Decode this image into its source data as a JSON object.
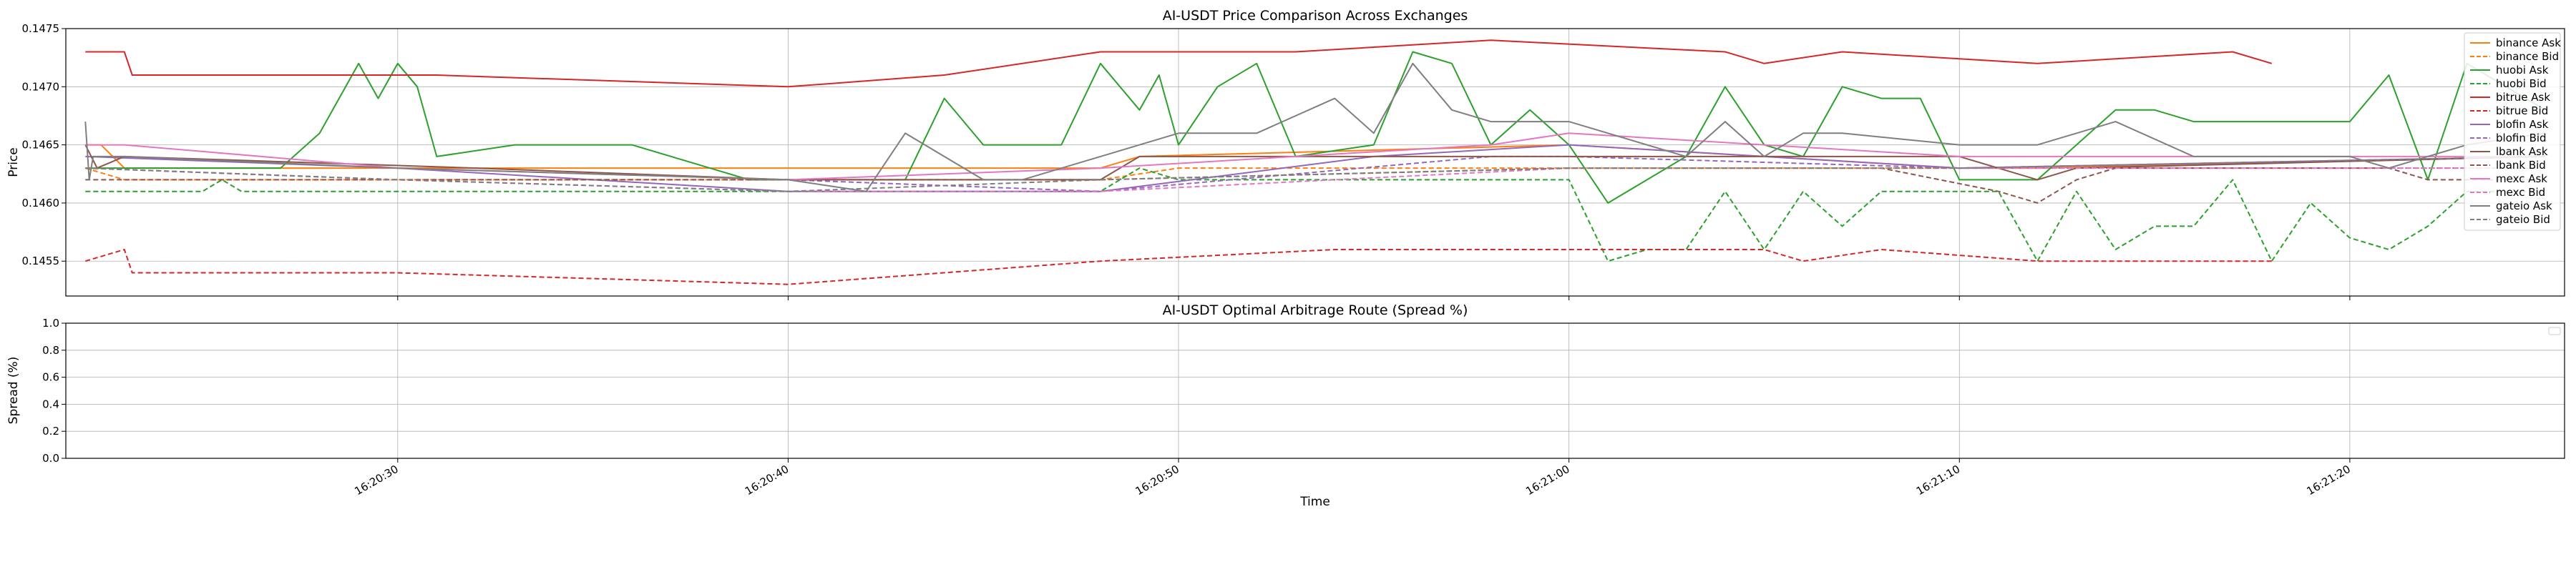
{
  "chart_data": [
    {
      "type": "line",
      "title": "AI-USDT Price Comparison Across Exchanges",
      "xlabel": "",
      "ylabel": "Price",
      "ylim": [
        0.1452,
        0.1475
      ],
      "y_ticks": [
        "0.1455",
        "0.1460",
        "0.1465",
        "0.1470",
        "0.1475"
      ],
      "x_range": [
        "16:20:21.5",
        "16:21:25.5"
      ],
      "x_ticks": [
        "16:20:30",
        "16:20:40",
        "16:20:50",
        "16:21:00",
        "16:21:10",
        "16:21:20"
      ],
      "grid": true,
      "legend_position": "top-right",
      "series": [
        {
          "name": "binance Ask",
          "color": "#ff7f0e",
          "dash": "solid",
          "x": [
            "16:20:22",
            "16:20:22.4",
            "16:20:23",
            "16:20:40",
            "16:20:48",
            "16:20:49",
            "16:21:00",
            "16:21:05",
            "16:21:10",
            "16:21:12",
            "16:21:25"
          ],
          "y": [
            0.1465,
            0.1465,
            0.1463,
            0.1463,
            0.1463,
            0.1464,
            0.1465,
            0.1464,
            0.1463,
            0.1463,
            0.1464
          ]
        },
        {
          "name": "binance Bid",
          "color": "#ff7f0e",
          "dash": "dashed",
          "x": [
            "16:20:22",
            "16:20:23",
            "16:20:40",
            "16:20:48",
            "16:20:50",
            "16:21:00",
            "16:21:05",
            "16:21:10",
            "16:21:25"
          ],
          "y": [
            0.1463,
            0.1462,
            0.1462,
            0.1462,
            0.1463,
            0.1463,
            0.1463,
            0.1463,
            0.1464
          ]
        },
        {
          "name": "huobi Ask",
          "color": "#2ca02c",
          "dash": "solid",
          "x": [
            "16:20:22",
            "16:20:27",
            "16:20:28",
            "16:20:29",
            "16:20:29.5",
            "16:20:30",
            "16:20:30.5",
            "16:20:31",
            "16:20:33",
            "16:20:36",
            "16:20:39",
            "16:20:43",
            "16:20:44",
            "16:20:45",
            "16:20:47",
            "16:20:48",
            "16:20:49",
            "16:20:49.5",
            "16:20:50",
            "16:20:51",
            "16:20:52",
            "16:20:53",
            "16:20:55",
            "16:20:56",
            "16:20:57",
            "16:20:58",
            "16:20:59",
            "16:21:00",
            "16:21:01",
            "16:21:03",
            "16:21:04",
            "16:21:05",
            "16:21:06",
            "16:21:07",
            "16:21:08",
            "16:21:09",
            "16:21:10",
            "16:21:12",
            "16:21:14",
            "16:21:15",
            "16:21:16",
            "16:21:20",
            "16:21:21",
            "16:21:22",
            "16:21:23",
            "16:21:24",
            "16:21:25"
          ],
          "y": [
            0.1463,
            0.1463,
            0.1466,
            0.1472,
            0.1469,
            0.1472,
            0.147,
            0.1464,
            0.1465,
            0.1465,
            0.1462,
            0.1462,
            0.1469,
            0.1465,
            0.1465,
            0.1472,
            0.1468,
            0.1471,
            0.1465,
            0.147,
            0.1472,
            0.1464,
            0.1465,
            0.1473,
            0.1472,
            0.1465,
            0.1468,
            0.1465,
            0.146,
            0.1464,
            0.147,
            0.1465,
            0.1464,
            0.147,
            0.1469,
            0.1469,
            0.1462,
            0.1462,
            0.1468,
            0.1468,
            0.1467,
            0.1467,
            0.1471,
            0.1462,
            0.1472,
            0.147,
            0.1468
          ]
        },
        {
          "name": "huobi Bid",
          "color": "#2ca02c",
          "dash": "dashed",
          "x": [
            "16:20:22",
            "16:20:25",
            "16:20:25.5",
            "16:20:26",
            "16:20:40",
            "16:20:45",
            "16:20:48",
            "16:20:49",
            "16:20:50",
            "16:20:51",
            "16:21:00",
            "16:21:01",
            "16:21:02",
            "16:21:03",
            "16:21:04",
            "16:21:05",
            "16:21:06",
            "16:21:07",
            "16:21:08",
            "16:21:09",
            "16:21:10",
            "16:21:11",
            "16:21:12",
            "16:21:13",
            "16:21:14",
            "16:21:15",
            "16:21:16",
            "16:21:17",
            "16:21:18",
            "16:21:19",
            "16:21:20",
            "16:21:21",
            "16:21:22",
            "16:21:23",
            "16:21:25"
          ],
          "y": [
            0.1461,
            0.1461,
            0.1462,
            0.1461,
            0.1461,
            0.1461,
            0.1461,
            0.1463,
            0.1462,
            0.1462,
            0.1462,
            0.1455,
            0.1456,
            0.1456,
            0.1461,
            0.1456,
            0.1461,
            0.1458,
            0.1461,
            0.1461,
            0.1461,
            0.1461,
            0.1455,
            0.1461,
            0.1456,
            0.1458,
            0.1458,
            0.1462,
            0.1455,
            0.146,
            0.1457,
            0.1456,
            0.1458,
            0.1461,
            0.1461
          ]
        },
        {
          "name": "bitrue Ask",
          "color": "#d62728",
          "dash": "solid",
          "x": [
            "16:20:22",
            "16:20:23",
            "16:20:23.2",
            "16:20:31",
            "16:20:40",
            "16:20:44",
            "16:20:48",
            "16:20:53",
            "16:20:58",
            "16:21:04",
            "16:21:05",
            "16:21:07",
            "16:21:12",
            "16:21:17",
            "16:21:18"
          ],
          "y": [
            0.1473,
            0.1473,
            0.1471,
            0.1471,
            0.147,
            0.1471,
            0.1473,
            0.1473,
            0.1474,
            0.1473,
            0.1472,
            0.1473,
            0.1472,
            0.1473,
            0.1472
          ]
        },
        {
          "name": "bitrue Bid",
          "color": "#d62728",
          "dash": "dashed",
          "x": [
            "16:20:22",
            "16:20:23",
            "16:20:23.2",
            "16:20:30",
            "16:20:40",
            "16:20:48",
            "16:20:54",
            "16:21:00",
            "16:21:05",
            "16:21:06",
            "16:21:08",
            "16:21:12",
            "16:21:18"
          ],
          "y": [
            0.1455,
            0.1456,
            0.1454,
            0.1454,
            0.1453,
            0.1455,
            0.1456,
            0.1456,
            0.1456,
            0.1455,
            0.1456,
            0.1455,
            0.1455
          ]
        },
        {
          "name": "blofin Ask",
          "color": "#9467bd",
          "dash": "solid",
          "x": [
            "16:20:22",
            "16:20:30",
            "16:20:40",
            "16:20:48",
            "16:20:55",
            "16:21:00",
            "16:21:10",
            "16:21:25"
          ],
          "y": [
            0.1464,
            0.1463,
            0.1461,
            0.1461,
            0.1464,
            0.1465,
            0.1463,
            0.1464
          ]
        },
        {
          "name": "blofin Bid",
          "color": "#9467bd",
          "dash": "dashed",
          "x": [
            "16:20:22",
            "16:20:30",
            "16:20:40",
            "16:20:48",
            "16:20:58",
            "16:21:00",
            "16:21:10",
            "16:21:25"
          ],
          "y": [
            0.1463,
            0.1462,
            0.1462,
            0.1461,
            0.1464,
            0.1464,
            0.1463,
            0.1463
          ]
        },
        {
          "name": "lbank Ask",
          "color": "#8c564b",
          "dash": "solid",
          "x": [
            "16:20:22",
            "16:20:22.3",
            "16:20:23",
            "16:20:32",
            "16:20:40",
            "16:20:48",
            "16:20:49",
            "16:21:00",
            "16:21:10",
            "16:21:12",
            "16:21:13",
            "16:21:25"
          ],
          "y": [
            0.1465,
            0.1463,
            0.1464,
            0.1463,
            0.1462,
            0.1462,
            0.1464,
            0.1464,
            0.1464,
            0.1462,
            0.1463,
            0.1464
          ]
        },
        {
          "name": "lbank Bid",
          "color": "#8c564b",
          "dash": "dashed",
          "x": [
            "16:20:22",
            "16:20:23",
            "16:20:40",
            "16:20:48",
            "16:21:00",
            "16:21:08",
            "16:21:11",
            "16:21:12",
            "16:21:13",
            "16:21:14",
            "16:21:21",
            "16:21:22",
            "16:21:25"
          ],
          "y": [
            0.1462,
            0.1462,
            0.1462,
            0.1462,
            0.1463,
            0.1463,
            0.1461,
            0.146,
            0.1462,
            0.1463,
            0.1463,
            0.1462,
            0.1462
          ]
        },
        {
          "name": "mexc Ask",
          "color": "#e377c2",
          "dash": "solid",
          "x": [
            "16:20:22",
            "16:20:23",
            "16:20:30",
            "16:20:40",
            "16:20:48",
            "16:20:58",
            "16:21:00",
            "16:21:10",
            "16:21:25"
          ],
          "y": [
            0.1465,
            0.1465,
            0.1463,
            0.1462,
            0.1463,
            0.1465,
            0.1466,
            0.1464,
            0.1464
          ]
        },
        {
          "name": "mexc Bid",
          "color": "#e377c2",
          "dash": "dashed",
          "x": [
            "16:20:22",
            "16:20:30",
            "16:20:40",
            "16:20:48",
            "16:21:00",
            "16:21:10",
            "16:21:25"
          ],
          "y": [
            0.1463,
            0.1462,
            0.1461,
            0.1461,
            0.1463,
            0.1463,
            0.1463
          ]
        },
        {
          "name": "gateio Ask",
          "color": "#7f7f7f",
          "dash": "solid",
          "x": [
            "16:20:22",
            "16:20:22.1",
            "16:20:22.2",
            "16:20:23",
            "16:20:30",
            "16:20:40",
            "16:20:42",
            "16:20:43",
            "16:20:44",
            "16:20:45",
            "16:20:46",
            "16:20:48",
            "16:20:49",
            "16:20:50",
            "16:20:52",
            "16:20:54",
            "16:20:55",
            "16:20:56",
            "16:20:57",
            "16:20:58",
            "16:21:00",
            "16:21:03",
            "16:21:04",
            "16:21:05",
            "16:21:06",
            "16:21:07",
            "16:21:10",
            "16:21:12",
            "16:21:14",
            "16:21:16",
            "16:21:20",
            "16:21:21",
            "16:21:23",
            "16:21:25"
          ],
          "y": [
            0.1467,
            0.1462,
            0.1464,
            0.1464,
            0.1463,
            0.1462,
            0.1461,
            0.1466,
            0.1464,
            0.1462,
            0.1462,
            0.1464,
            0.1465,
            0.1466,
            0.1466,
            0.1469,
            0.1466,
            0.1472,
            0.1468,
            0.1467,
            0.1467,
            0.1464,
            0.1467,
            0.1464,
            0.1466,
            0.1466,
            0.1465,
            0.1465,
            0.1467,
            0.1464,
            0.1464,
            0.1463,
            0.1465,
            0.1466
          ]
        },
        {
          "name": "gateio Bid",
          "color": "#7f7f7f",
          "dash": "dashed",
          "x": [
            "16:20:22",
            "16:20:30",
            "16:20:40",
            "16:20:48",
            "16:21:00",
            "16:21:10",
            "16:21:25"
          ],
          "y": [
            0.1463,
            0.1462,
            0.1461,
            0.1462,
            0.1463,
            0.1463,
            0.1464
          ]
        }
      ]
    },
    {
      "type": "line",
      "title": "AI-USDT Optimal Arbitrage Route (Spread %)",
      "xlabel": "Time",
      "ylabel": "Spread (%)",
      "ylim": [
        0.0,
        1.0
      ],
      "y_ticks": [
        "0.0",
        "0.2",
        "0.4",
        "0.6",
        "0.8",
        "1.0"
      ],
      "x_range": [
        "16:20:21.5",
        "16:21:25.5"
      ],
      "x_ticks": [
        "16:20:30",
        "16:20:40",
        "16:20:50",
        "16:21:00",
        "16:21:10",
        "16:21:20"
      ],
      "grid": true,
      "legend_position": "top-right",
      "series": []
    }
  ]
}
